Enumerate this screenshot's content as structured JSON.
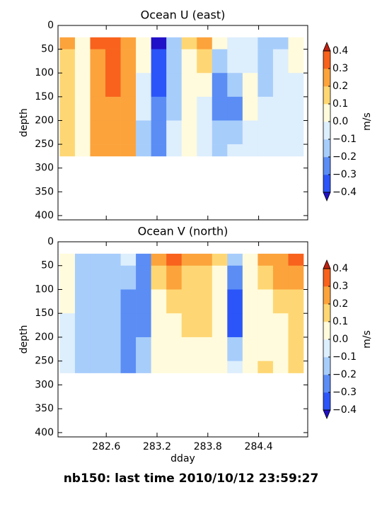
{
  "chart_data": [
    {
      "type": "contour",
      "title": "Ocean U (east)",
      "ylabel": "depth",
      "show_xticklabels": false,
      "x": [
        282.05,
        282.23,
        282.41,
        282.59,
        282.77,
        282.95,
        283.13,
        283.31,
        283.49,
        283.67,
        283.85,
        284.03,
        284.21,
        284.39,
        284.57,
        284.75,
        284.93
      ],
      "y": [
        25,
        50,
        100,
        150,
        200,
        250,
        275
      ],
      "values": [
        [
          0.25,
          0.05,
          0.35,
          0.35,
          0.25,
          0.05,
          -0.45,
          -0.15,
          0.15,
          0.25,
          0.05,
          -0.05,
          -0.05,
          -0.15,
          -0.15,
          0.05
        ],
        [
          0.15,
          0.05,
          0.25,
          0.35,
          0.25,
          0.05,
          -0.35,
          -0.15,
          0.05,
          0.15,
          -0.15,
          -0.05,
          -0.05,
          -0.15,
          -0.05,
          0.05
        ],
        [
          0.15,
          0.05,
          0.25,
          0.35,
          0.25,
          -0.05,
          -0.35,
          -0.15,
          0.05,
          0.05,
          -0.25,
          -0.15,
          0.05,
          -0.15,
          -0.05,
          -0.05
        ],
        [
          0.15,
          0.05,
          0.25,
          0.25,
          0.25,
          -0.05,
          -0.25,
          -0.15,
          0.05,
          -0.05,
          -0.25,
          -0.25,
          0.05,
          -0.05,
          -0.05,
          -0.05
        ],
        [
          0.15,
          0.05,
          0.25,
          0.25,
          0.25,
          -0.15,
          -0.25,
          -0.05,
          0.05,
          -0.05,
          -0.15,
          -0.15,
          -0.05,
          -0.05,
          -0.05,
          -0.05
        ],
        [
          0.15,
          0.05,
          0.25,
          0.25,
          0.25,
          -0.15,
          -0.25,
          -0.05,
          0.05,
          -0.05,
          -0.15,
          -0.05,
          -0.05,
          -0.05,
          -0.05,
          -0.05
        ]
      ],
      "xlim": [
        282.03,
        284.98
      ],
      "xticks": [
        282.6,
        283.2,
        283.8,
        284.4
      ],
      "ylim": [
        409,
        0
      ],
      "yticks": [
        0,
        50,
        100,
        150,
        200,
        250,
        300,
        350,
        400
      ],
      "levels": [
        -0.4,
        -0.3,
        -0.2,
        -0.1,
        0,
        0.1,
        0.2,
        0.3,
        0.4
      ],
      "colors": [
        "#2b55f8",
        "#5b8df5",
        "#a7cdfb",
        "#ddeefd",
        "#fffbdc",
        "#fed774",
        "#fca33c",
        "#f8621c"
      ],
      "under_color": "#2010c8",
      "over_color": "#c02010",
      "colorbar_label": "m/s",
      "colorbar_ticks": [
        {
          "value": -0.4,
          "label": "−0.4"
        },
        {
          "value": -0.3,
          "label": "−0.3"
        },
        {
          "value": -0.2,
          "label": "−0.2"
        },
        {
          "value": -0.1,
          "label": "−0.1"
        },
        {
          "value": 0,
          "label": "0.0"
        },
        0.1,
        0.2,
        0.3,
        0.4
      ]
    },
    {
      "type": "contour",
      "title": "Ocean V (north)",
      "ylabel": "depth",
      "xlabel": "dday",
      "show_xticklabels": true,
      "x": [
        282.05,
        282.23,
        282.41,
        282.59,
        282.77,
        282.95,
        283.13,
        283.31,
        283.49,
        283.67,
        283.85,
        284.03,
        284.21,
        284.39,
        284.57,
        284.75,
        284.93
      ],
      "y": [
        25,
        50,
        100,
        150,
        200,
        250,
        275
      ],
      "values": [
        [
          0.05,
          -0.15,
          -0.15,
          -0.15,
          -0.05,
          -0.25,
          0.25,
          0.35,
          0.25,
          0.25,
          0.15,
          -0.15,
          0.05,
          0.25,
          0.25,
          0.35
        ],
        [
          0.05,
          -0.15,
          -0.15,
          -0.15,
          -0.15,
          -0.25,
          0.15,
          0.25,
          0.15,
          0.15,
          0.05,
          -0.25,
          0.05,
          0.15,
          0.25,
          0.25
        ],
        [
          0.05,
          -0.15,
          -0.15,
          -0.15,
          -0.25,
          -0.25,
          0.05,
          0.15,
          0.15,
          0.15,
          0.05,
          -0.35,
          0.05,
          0.05,
          0.15,
          0.15
        ],
        [
          -0.05,
          -0.15,
          -0.15,
          -0.15,
          -0.25,
          -0.25,
          0.05,
          0.05,
          0.15,
          0.15,
          0.05,
          -0.35,
          0.05,
          0.05,
          0.05,
          0.15
        ],
        [
          -0.05,
          -0.15,
          -0.15,
          -0.15,
          -0.25,
          -0.15,
          0.05,
          0.05,
          0.05,
          0.05,
          0.05,
          -0.15,
          0.05,
          0.05,
          0.05,
          0.15
        ],
        [
          -0.05,
          -0.15,
          -0.15,
          -0.15,
          -0.25,
          -0.15,
          0.05,
          0.05,
          0.05,
          0.05,
          0.05,
          -0.05,
          0.05,
          0.15,
          0.05,
          0.15
        ]
      ],
      "xlim": [
        282.03,
        284.98
      ],
      "xticks": [
        282.6,
        283.2,
        283.8,
        284.4
      ],
      "ylim": [
        409,
        0
      ],
      "yticks": [
        0,
        50,
        100,
        150,
        200,
        250,
        300,
        350,
        400
      ],
      "levels": [
        -0.4,
        -0.3,
        -0.2,
        -0.1,
        0,
        0.1,
        0.2,
        0.3,
        0.4
      ],
      "colors": [
        "#2b55f8",
        "#5b8df5",
        "#a7cdfb",
        "#ddeefd",
        "#fffbdc",
        "#fed774",
        "#fca33c",
        "#f8621c"
      ],
      "under_color": "#2010c8",
      "over_color": "#c02010",
      "colorbar_label": "m/s",
      "colorbar_ticks": [
        {
          "value": -0.4,
          "label": "−0.4"
        },
        {
          "value": -0.3,
          "label": "−0.3"
        },
        {
          "value": -0.2,
          "label": "−0.2"
        },
        {
          "value": -0.1,
          "label": "−0.1"
        },
        {
          "value": 0,
          "label": "0.0"
        },
        0.1,
        0.2,
        0.3,
        0.4
      ]
    }
  ],
  "footer": "nb150: last time 2010/10/12 23:59:27"
}
